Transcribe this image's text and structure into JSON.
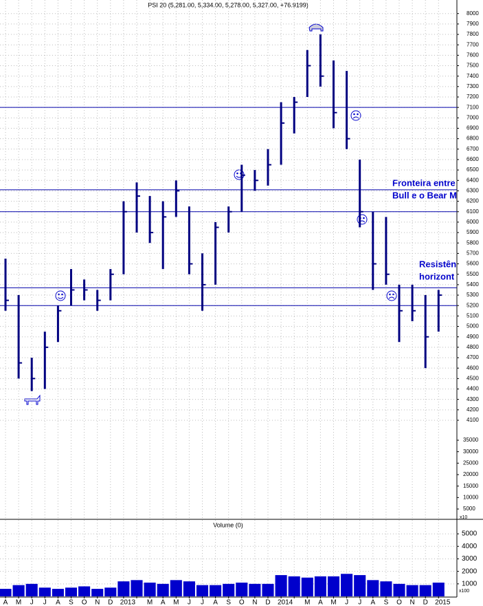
{
  "chart_data": {
    "type": "ohlc",
    "title": "PSI 20 (5,281.00, 5,334.00, 5,278.00, 5,327.00, +76.9199)",
    "categories": [
      "A",
      "M",
      "J",
      "J",
      "A",
      "S",
      "O",
      "N",
      "D",
      "2013",
      null,
      "M",
      "A",
      "M",
      "J",
      "J",
      "A",
      "S",
      "O",
      "N",
      "D",
      "2014",
      null,
      "M",
      "A",
      "M",
      "J",
      "J",
      "A",
      "S",
      "O",
      "N",
      "D",
      "2015"
    ],
    "series": [
      {
        "color": "#000080",
        "high": [
          5650,
          5300,
          4700,
          4950,
          5200,
          5550,
          5450,
          5350,
          5550,
          6200,
          6380,
          6250,
          6200,
          6400,
          6150,
          5700,
          6000,
          6150,
          6550,
          6500,
          6700,
          7150,
          7200,
          7650,
          7800,
          7550,
          7450,
          6600,
          6100,
          6050,
          5400,
          5400,
          5300,
          5350
        ],
        "low": [
          5150,
          4500,
          4380,
          4400,
          4850,
          5200,
          5250,
          5150,
          5250,
          5500,
          5900,
          5800,
          5550,
          6050,
          5500,
          5150,
          5400,
          5900,
          6100,
          6300,
          6350,
          6550,
          6850,
          7200,
          7300,
          6900,
          6700,
          5950,
          5350,
          5400,
          4850,
          5050,
          4600,
          4950
        ],
        "values": [
          5250,
          4650,
          4500,
          4800,
          5150,
          5350,
          5350,
          5250,
          5500,
          6100,
          6250,
          5900,
          6050,
          6300,
          5600,
          5400,
          5950,
          6100,
          6450,
          6400,
          6550,
          6950,
          7150,
          7500,
          7400,
          7050,
          6800,
          6100,
          5600,
          5500,
          5150,
          5150,
          4900,
          5300
        ]
      }
    ],
    "ylim": [
      3150,
      8130
    ],
    "yticks": [
      4100,
      4200,
      4300,
      4400,
      4500,
      4600,
      4700,
      4800,
      4900,
      5000,
      5100,
      5200,
      5300,
      5400,
      5500,
      5600,
      5700,
      5800,
      5900,
      6000,
      6100,
      6200,
      6300,
      6400,
      6500,
      6600,
      6700,
      6800,
      6900,
      7000,
      7100,
      7200,
      7300,
      7400,
      7500,
      7600,
      7700,
      7800,
      7900,
      8000
    ],
    "y2lim": [
      500,
      227000
    ],
    "y2ticks": [
      5000,
      10000,
      15000,
      20000,
      25000,
      30000,
      35000
    ],
    "y2_unit": "x10",
    "hlines": {
      "color": "#0000aa",
      "values": [
        7100,
        6310,
        6100,
        5370,
        5200
      ]
    },
    "annotations": [
      {
        "lines": [
          "Fronteira entre",
          "Bull e o Bear M"
        ]
      },
      {
        "lines": [
          "Resistên",
          "horizont"
        ]
      }
    ],
    "grid": true,
    "volume": {
      "title": "Volume (0)",
      "color": "#0000cc",
      "unit": "x100",
      "ylim": [
        0,
        6050
      ],
      "yticks": [
        1000,
        2000,
        3000,
        4000,
        5000
      ],
      "values": [
        600,
        900,
        1000,
        700,
        600,
        700,
        800,
        600,
        700,
        1200,
        1300,
        1100,
        1000,
        1300,
        1200,
        900,
        900,
        1000,
        1100,
        1000,
        1000,
        1700,
        1600,
        1500,
        1600,
        1600,
        1800,
        1700,
        1300,
        1200,
        1000,
        900,
        900,
        1100
      ]
    }
  }
}
